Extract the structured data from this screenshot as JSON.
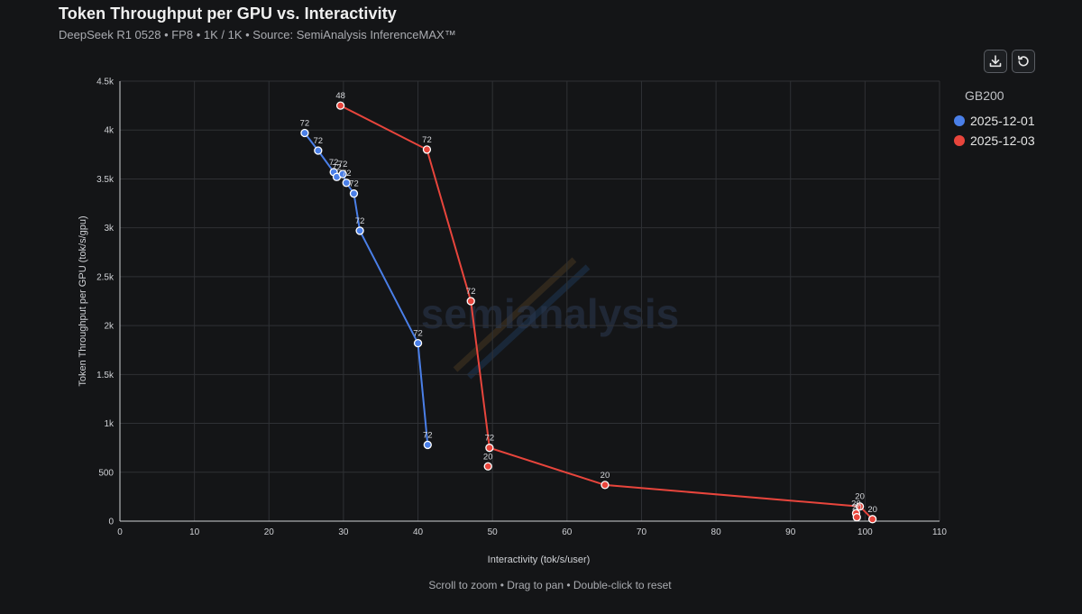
{
  "header": {
    "title": "Token Throughput per GPU vs. Interactivity",
    "subtitle": "DeepSeek R1 0528 • FP8 • 1K / 1K • Source: SemiAnalysis InferenceMAX™"
  },
  "toolbar": {
    "download_icon": "download-icon",
    "reset_icon": "reset-icon"
  },
  "legend": {
    "title": "GB200",
    "items": [
      {
        "label": "2025-12-01",
        "color": "#4a7fe8"
      },
      {
        "label": "2025-12-03",
        "color": "#e8453c"
      }
    ]
  },
  "watermark": "semianalysis",
  "footer": {
    "hint": "Scroll to zoom • Drag to pan • Double-click to reset"
  },
  "chart_data": {
    "type": "scatter",
    "xlabel": "Interactivity (tok/s/user)",
    "ylabel": "Token Throughput per GPU (tok/s/gpu)",
    "xlim": [
      0,
      110
    ],
    "ylim": [
      0,
      4500
    ],
    "x_ticks": [
      0,
      10,
      20,
      30,
      40,
      50,
      60,
      70,
      80,
      90,
      100,
      110
    ],
    "y_ticks": [
      0,
      500,
      1000,
      1500,
      2000,
      2500,
      3000,
      3500,
      4000,
      4500
    ],
    "y_tick_labels": [
      "0",
      "500",
      "1k",
      "1.5k",
      "2k",
      "2.5k",
      "3k",
      "3.5k",
      "4k",
      "4.5k"
    ],
    "grid": true,
    "legend_position": "right",
    "series": [
      {
        "name": "2025-12-01",
        "color": "#4a7fe8",
        "line": true,
        "points": [
          {
            "x": 24.8,
            "y": 3970,
            "label": "72"
          },
          {
            "x": 26.6,
            "y": 3790,
            "label": "72"
          },
          {
            "x": 28.7,
            "y": 3570,
            "label": "72"
          },
          {
            "x": 29.1,
            "y": 3520,
            "label": "72"
          },
          {
            "x": 29.9,
            "y": 3550,
            "label": "72"
          },
          {
            "x": 30.4,
            "y": 3460,
            "label": "72"
          },
          {
            "x": 31.4,
            "y": 3350,
            "label": "72"
          },
          {
            "x": 32.2,
            "y": 2970,
            "label": "72"
          },
          {
            "x": 40.0,
            "y": 1820,
            "label": "72"
          },
          {
            "x": 41.3,
            "y": 780,
            "label": "72"
          }
        ]
      },
      {
        "name": "2025-12-03",
        "color": "#e8453c",
        "line": true,
        "points": [
          {
            "x": 29.6,
            "y": 4250,
            "label": "48"
          },
          {
            "x": 41.2,
            "y": 3800,
            "label": "72"
          },
          {
            "x": 47.1,
            "y": 2250,
            "label": "72"
          },
          {
            "x": 49.6,
            "y": 750,
            "label": "72"
          },
          {
            "x": 65.1,
            "y": 370,
            "label": "20"
          },
          {
            "x": 99.3,
            "y": 150,
            "label": "20"
          },
          {
            "x": 101.0,
            "y": 20,
            "label": "20"
          }
        ]
      },
      {
        "name": "2025-12-03",
        "color": "#e8453c",
        "line": false,
        "points": [
          {
            "x": 49.4,
            "y": 560,
            "label": "20"
          },
          {
            "x": 98.8,
            "y": 80,
            "label": "20"
          },
          {
            "x": 98.9,
            "y": 40,
            "label": "20"
          }
        ]
      }
    ]
  }
}
